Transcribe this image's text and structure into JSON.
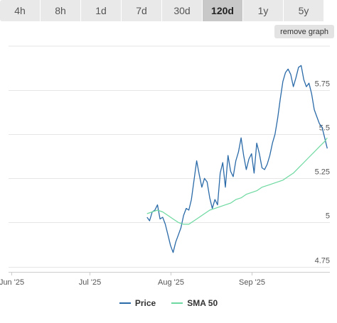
{
  "tabs": [
    {
      "label": "4h",
      "active": false
    },
    {
      "label": "8h",
      "active": false
    },
    {
      "label": "1d",
      "active": false
    },
    {
      "label": "7d",
      "active": false
    },
    {
      "label": "30d",
      "active": false
    },
    {
      "label": "120d",
      "active": true
    },
    {
      "label": "1y",
      "active": false
    },
    {
      "label": "5y",
      "active": false
    }
  ],
  "remove_graph_label": "remove graph",
  "colors": {
    "price": "#2a6aa8",
    "sma": "#6dd9a0",
    "grid": "#e6e6e6"
  },
  "chart_data": {
    "type": "line",
    "title": "",
    "xlabel": "",
    "ylabel": "",
    "x_ticks": [
      {
        "label": "Jun '25",
        "date": "2025-06-01"
      },
      {
        "label": "Jul '25",
        "date": "2025-07-01"
      },
      {
        "label": "Aug '25",
        "date": "2025-08-01"
      },
      {
        "label": "Sep '25",
        "date": "2025-09-01"
      }
    ],
    "xlim": [
      "2025-05-31",
      "2025-10-01"
    ],
    "ylim": [
      4.72,
      6.0
    ],
    "y_ticks": [
      {
        "label": "4.75",
        "value": 4.75
      },
      {
        "label": "5",
        "value": 5.0
      },
      {
        "label": "5.25",
        "value": 5.25
      },
      {
        "label": "5.5",
        "value": 5.5
      },
      {
        "label": "5.75",
        "value": 5.75
      }
    ],
    "grid": true,
    "legend": "bottom-center",
    "series": [
      {
        "name": "Price",
        "x": [
          "2025-07-23",
          "2025-07-24",
          "2025-07-25",
          "2025-07-26",
          "2025-07-27",
          "2025-07-28",
          "2025-07-29",
          "2025-07-30",
          "2025-07-31",
          "2025-08-01",
          "2025-08-02",
          "2025-08-03",
          "2025-08-04",
          "2025-08-05",
          "2025-08-06",
          "2025-08-07",
          "2025-08-08",
          "2025-08-09",
          "2025-08-10",
          "2025-08-11",
          "2025-08-12",
          "2025-08-13",
          "2025-08-14",
          "2025-08-15",
          "2025-08-16",
          "2025-08-17",
          "2025-08-18",
          "2025-08-19",
          "2025-08-20",
          "2025-08-21",
          "2025-08-22",
          "2025-08-23",
          "2025-08-24",
          "2025-08-25",
          "2025-08-26",
          "2025-08-27",
          "2025-08-28",
          "2025-08-29",
          "2025-08-30",
          "2025-08-31",
          "2025-09-01",
          "2025-09-02",
          "2025-09-03",
          "2025-09-04",
          "2025-09-05",
          "2025-09-06",
          "2025-09-07",
          "2025-09-08",
          "2025-09-09",
          "2025-09-10",
          "2025-09-11",
          "2025-09-12",
          "2025-09-13",
          "2025-09-14",
          "2025-09-15",
          "2025-09-16",
          "2025-09-17",
          "2025-09-18",
          "2025-09-19",
          "2025-09-20",
          "2025-09-21",
          "2025-09-22",
          "2025-09-23",
          "2025-09-24",
          "2025-09-25",
          "2025-09-26",
          "2025-09-27",
          "2025-09-28",
          "2025-09-29",
          "2025-09-30"
        ],
        "values": [
          5.03,
          5.01,
          5.06,
          5.07,
          5.1,
          5.02,
          5.03,
          4.99,
          4.93,
          4.87,
          4.83,
          4.89,
          4.93,
          4.97,
          5.04,
          5.08,
          5.07,
          5.13,
          5.24,
          5.35,
          5.27,
          5.2,
          5.25,
          5.23,
          5.14,
          5.08,
          5.13,
          5.1,
          5.28,
          5.34,
          5.2,
          5.38,
          5.29,
          5.26,
          5.35,
          5.4,
          5.48,
          5.38,
          5.3,
          5.36,
          5.39,
          5.28,
          5.45,
          5.39,
          5.31,
          5.3,
          5.33,
          5.38,
          5.45,
          5.5,
          5.59,
          5.7,
          5.8,
          5.85,
          5.87,
          5.84,
          5.77,
          5.82,
          5.88,
          5.89,
          5.81,
          5.77,
          5.79,
          5.73,
          5.64,
          5.6,
          5.56,
          5.54,
          5.48,
          5.42
        ]
      },
      {
        "name": "SMA 50",
        "x": [
          "2025-07-23",
          "2025-07-25",
          "2025-07-27",
          "2025-07-29",
          "2025-07-31",
          "2025-08-02",
          "2025-08-04",
          "2025-08-06",
          "2025-08-08",
          "2025-08-10",
          "2025-08-12",
          "2025-08-14",
          "2025-08-16",
          "2025-08-18",
          "2025-08-20",
          "2025-08-22",
          "2025-08-24",
          "2025-08-26",
          "2025-08-28",
          "2025-08-30",
          "2025-09-01",
          "2025-09-03",
          "2025-09-05",
          "2025-09-07",
          "2025-09-09",
          "2025-09-11",
          "2025-09-13",
          "2025-09-15",
          "2025-09-17",
          "2025-09-19",
          "2025-09-21",
          "2025-09-23",
          "2025-09-25",
          "2025-09-27",
          "2025-09-29",
          "2025-09-30"
        ],
        "values": [
          5.05,
          5.06,
          5.07,
          5.06,
          5.04,
          5.02,
          5.0,
          4.99,
          4.99,
          5.01,
          5.03,
          5.05,
          5.07,
          5.08,
          5.09,
          5.1,
          5.11,
          5.13,
          5.14,
          5.16,
          5.17,
          5.18,
          5.2,
          5.21,
          5.22,
          5.23,
          5.24,
          5.26,
          5.28,
          5.31,
          5.34,
          5.37,
          5.4,
          5.43,
          5.46,
          5.48
        ]
      }
    ]
  }
}
